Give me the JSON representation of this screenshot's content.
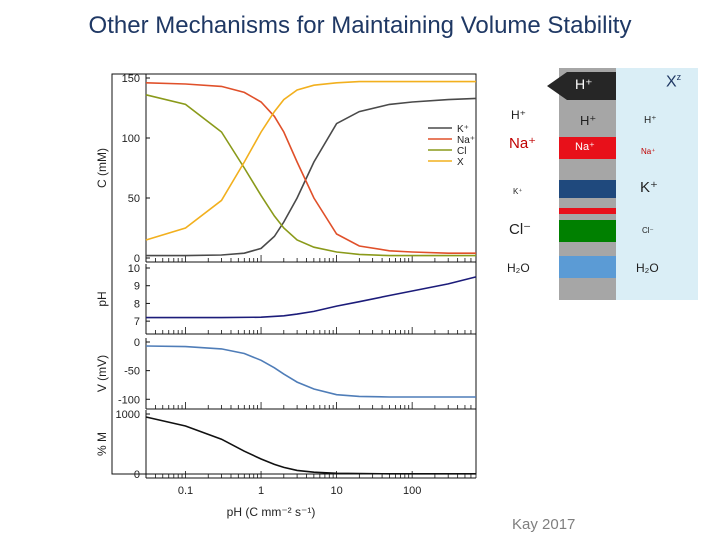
{
  "title": "Other Mechanisms for Maintaining Volume Stability",
  "credit": "Kay 2017",
  "colors": {
    "K": "#4a4a4a",
    "Na": "#e0502a",
    "Cl": "#8a9a1a",
    "X": "#f2b01e",
    "pH": "#1c1c7a",
    "V": "#4f7db8",
    "pct": "#111111",
    "membrane": "#a6a6a6",
    "outside": "#daeef6",
    "K_band": "#1f497d",
    "Na_band": "#e8101a",
    "Cl_band": "#008000",
    "H2O_band": "#5b9bd5",
    "arrow": "#262626"
  },
  "diagram": {
    "top_arrow_label": "H⁺",
    "x_label": "X",
    "x_charge": "z",
    "left_labels": {
      "H": "H⁺",
      "Na": "Na⁺",
      "K": "K⁺",
      "Cl": "Cl⁻",
      "H2O": "H₂O"
    },
    "membrane_labels": {
      "H": "H⁺",
      "Na": "Na⁺"
    },
    "right_labels": {
      "H": "H⁺",
      "Na": "Na⁺",
      "K": "K⁺",
      "Cl": "Cl⁻",
      "H2O": "H₂O"
    }
  },
  "chart_data": [
    {
      "type": "line",
      "ylabel": "C (mM)",
      "xscale": "log",
      "xlim": [
        0.03,
        700
      ],
      "ylim": [
        0,
        150
      ],
      "yticks": [
        0,
        50,
        100,
        150
      ],
      "legend_placement": "right",
      "series": [
        {
          "name": "K⁺",
          "x": [
            0.03,
            0.1,
            0.3,
            0.6,
            1,
            1.5,
            2,
            3,
            5,
            10,
            20,
            50,
            100,
            300,
            700
          ],
          "y": [
            2,
            2,
            2.5,
            4,
            8,
            18,
            30,
            50,
            80,
            112,
            122,
            128,
            130,
            132,
            133
          ]
        },
        {
          "name": "Na⁺",
          "x": [
            0.03,
            0.1,
            0.3,
            0.6,
            1,
            1.5,
            2,
            3,
            5,
            10,
            20,
            50,
            100,
            300,
            700
          ],
          "y": [
            146,
            145,
            143,
            138,
            130,
            118,
            105,
            80,
            50,
            20,
            10,
            6,
            5,
            4,
            4
          ]
        },
        {
          "name": "Cl",
          "x": [
            0.03,
            0.1,
            0.3,
            0.6,
            1,
            1.5,
            2,
            3,
            5,
            10,
            20,
            50,
            100,
            300,
            700
          ],
          "y": [
            136,
            128,
            105,
            75,
            52,
            35,
            25,
            15,
            9,
            5,
            3,
            2,
            2,
            2,
            2
          ]
        },
        {
          "name": "X",
          "x": [
            0.03,
            0.1,
            0.3,
            0.6,
            1,
            1.5,
            2,
            3,
            5,
            10,
            20,
            50,
            100,
            300,
            700
          ],
          "y": [
            15,
            25,
            48,
            80,
            105,
            122,
            132,
            140,
            144,
            146,
            147,
            147,
            147,
            147,
            147
          ]
        }
      ]
    },
    {
      "type": "line",
      "ylabel": "pH",
      "xscale": "log",
      "xlim": [
        0.03,
        700
      ],
      "ylim": [
        6.5,
        10
      ],
      "yticks": [
        7,
        8,
        9,
        10
      ],
      "series": [
        {
          "x": [
            0.03,
            0.1,
            0.3,
            1,
            2,
            3,
            5,
            10,
            20,
            50,
            100,
            300,
            700
          ],
          "y": [
            7.2,
            7.2,
            7.2,
            7.22,
            7.3,
            7.4,
            7.55,
            7.85,
            8.1,
            8.45,
            8.7,
            9.1,
            9.5
          ]
        }
      ]
    },
    {
      "type": "line",
      "ylabel": "V (mV)",
      "xscale": "log",
      "xlim": [
        0.03,
        700
      ],
      "ylim": [
        -110,
        0
      ],
      "yticks": [
        -100,
        -50,
        0
      ],
      "series": [
        {
          "x": [
            0.03,
            0.1,
            0.3,
            0.6,
            1,
            1.5,
            2,
            3,
            5,
            10,
            20,
            50,
            100,
            300,
            700
          ],
          "y": [
            -7,
            -8,
            -12,
            -20,
            -32,
            -45,
            -56,
            -70,
            -82,
            -92,
            -95,
            -96,
            -96,
            -96,
            -96
          ]
        }
      ]
    },
    {
      "type": "line",
      "ylabel": "% M",
      "xlabel": "pH (C mm⁻² s⁻¹)",
      "xscale": "log",
      "xlim": [
        0.03,
        700
      ],
      "ylim": [
        0,
        1000
      ],
      "yticks": [
        0,
        1000
      ],
      "xticks": [
        0.1,
        1,
        10,
        100
      ],
      "xtick_labels": [
        "0.1",
        "1",
        "10",
        "100"
      ],
      "series": [
        {
          "x": [
            0.03,
            0.1,
            0.3,
            0.6,
            1,
            1.5,
            2,
            3,
            5,
            10,
            20,
            50,
            100,
            300,
            700
          ],
          "y": [
            950,
            800,
            580,
            380,
            250,
            160,
            110,
            60,
            30,
            12,
            6,
            4,
            3,
            3,
            3
          ]
        }
      ]
    }
  ]
}
